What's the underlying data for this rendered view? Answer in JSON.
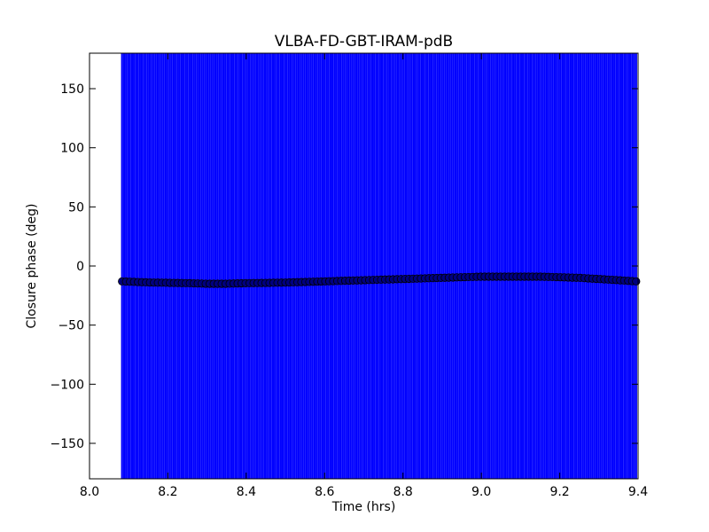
{
  "chart_data": {
    "type": "scatter",
    "title": "VLBA-FD-GBT-IRAM-pdB",
    "xlabel": "Time (hrs)",
    "ylabel": "Closure phase (deg)",
    "xlim": [
      8.0,
      9.4
    ],
    "ylim": [
      -180,
      180
    ],
    "xticks": [
      8.0,
      8.2,
      8.4,
      8.6,
      8.8,
      9.0,
      9.2,
      9.4
    ],
    "xtick_labels": [
      "8.0",
      "8.2",
      "8.4",
      "8.6",
      "8.8",
      "9.0",
      "9.2",
      "9.4"
    ],
    "yticks": [
      -150,
      -100,
      -50,
      0,
      50,
      100,
      150
    ],
    "ytick_labels": [
      "−150",
      "−100",
      "−50",
      "0",
      "50",
      "100",
      "150"
    ],
    "grid": false,
    "colors": {
      "marker": "#00007f",
      "errorbar": "#0000ff"
    },
    "series": [
      {
        "marker": "circle",
        "errorbars": {
          "lower": -180,
          "upper": 180
        },
        "x_range": [
          8.083,
          9.395
        ],
        "points": [
          [
            8.083,
            -13
          ],
          [
            8.12,
            -13.5
          ],
          [
            8.16,
            -14
          ],
          [
            8.2,
            -14.2
          ],
          [
            8.25,
            -14.5
          ],
          [
            8.3,
            -15
          ],
          [
            8.35,
            -15
          ],
          [
            8.4,
            -14.5
          ],
          [
            8.45,
            -14.3
          ],
          [
            8.5,
            -14
          ],
          [
            8.55,
            -13.5
          ],
          [
            8.6,
            -13
          ],
          [
            8.65,
            -12.5
          ],
          [
            8.7,
            -12
          ],
          [
            8.75,
            -11.5
          ],
          [
            8.8,
            -11
          ],
          [
            8.85,
            -10.5
          ],
          [
            8.9,
            -10
          ],
          [
            8.95,
            -9.5
          ],
          [
            9.0,
            -9
          ],
          [
            9.05,
            -9
          ],
          [
            9.1,
            -9
          ],
          [
            9.15,
            -9
          ],
          [
            9.2,
            -9.5
          ],
          [
            9.25,
            -10
          ],
          [
            9.3,
            -11
          ],
          [
            9.35,
            -12
          ],
          [
            9.395,
            -13
          ]
        ]
      }
    ]
  }
}
